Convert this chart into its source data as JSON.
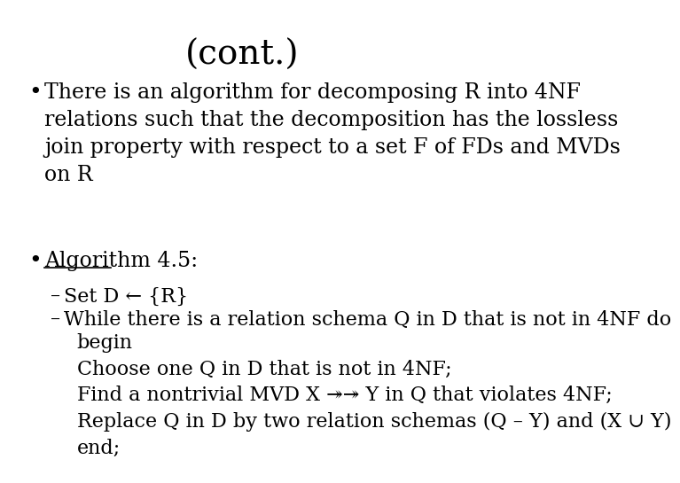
{
  "title": "(cont.)",
  "title_fontsize": 28,
  "title_font": "serif",
  "background_color": "#ffffff",
  "text_color": "#000000",
  "body_fontsize": 17,
  "body_font": "serif",
  "bullet1": "There is an algorithm for decomposing R into 4NF\nrelations such that the decomposition has the lossless\njoin property with respect to a set F of FDs and MVDs\non R",
  "bullet2_underline": "Algorithm 4.5:",
  "sub1": "Set D ← {R}",
  "sub2": "While there is a relation schema Q in D that is not in 4NF do",
  "sub2_indent": "begin\nChoose one Q in D that is not in 4NF;\nFind a nontrivial MVD X ↠↠ Y in Q that violates 4NF;\nReplace Q in D by two relation schemas (Q – Y) and (X ∪ Y)\nend;"
}
